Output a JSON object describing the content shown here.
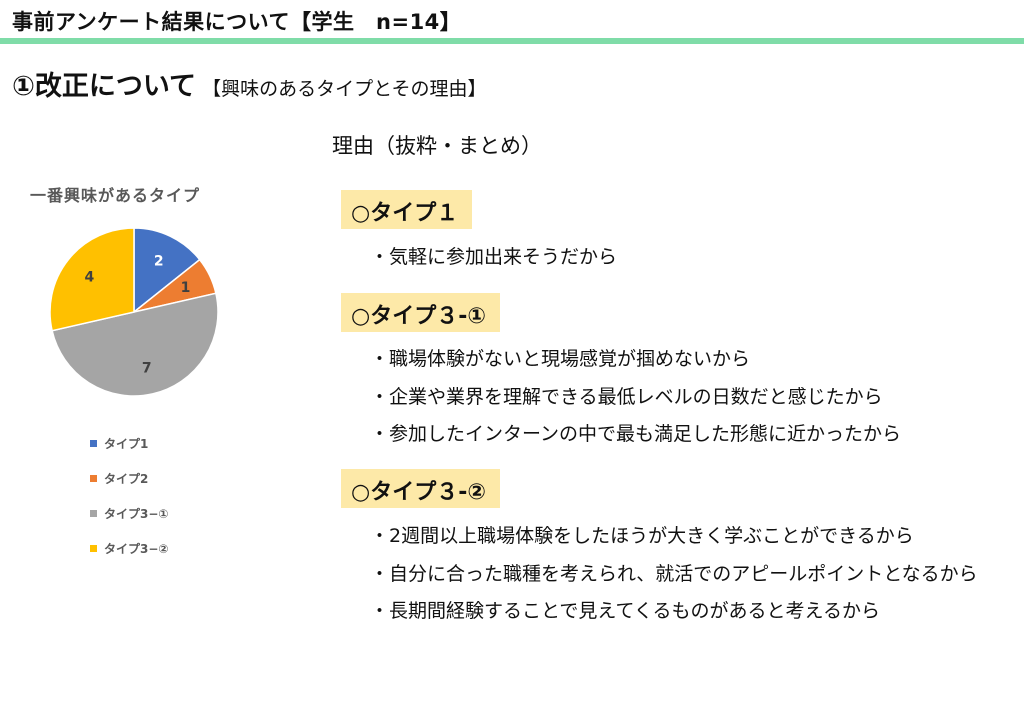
{
  "header": {
    "title": "事前アンケート結果について【学生　n=14】",
    "rule_color": "#7fdca8"
  },
  "section": {
    "title": "①改正について",
    "subtitle": "【興味のあるタイプとその理由】"
  },
  "reasons": {
    "heading": "理由（抜粋・まとめ）",
    "groups": [
      {
        "label": "○タイプ１",
        "items": [
          "・気軽に参加出来そうだから"
        ]
      },
      {
        "label": "○タイプ３-①",
        "items": [
          "・職場体験がないと現場感覚が掴めないから",
          "・企業や業界を理解できる最低レベルの日数だと感じたから",
          "・参加したインターンの中で最も満足した形態に近かったから"
        ]
      },
      {
        "label": "○タイプ３-②",
        "items": [
          "・2週間以上職場体験をしたほうが大きく学ぶことができるから",
          "・自分に合った職種を考えられ、就活でのアピールポイントとなるから",
          "・長期間経験することで見えてくるものがあると考えるから"
        ]
      }
    ]
  },
  "chart_data": {
    "type": "pie",
    "title": "一番興味があるタイプ",
    "categories": [
      "タイプ1",
      "タイプ2",
      "タイプ3−①",
      "タイプ3−②"
    ],
    "values": [
      2,
      1,
      7,
      4
    ],
    "colors": [
      "#4472c4",
      "#ed7d31",
      "#a5a5a5",
      "#ffc000"
    ],
    "data_labels": [
      "2",
      "1",
      "7",
      "4"
    ],
    "legend_position": "bottom"
  }
}
